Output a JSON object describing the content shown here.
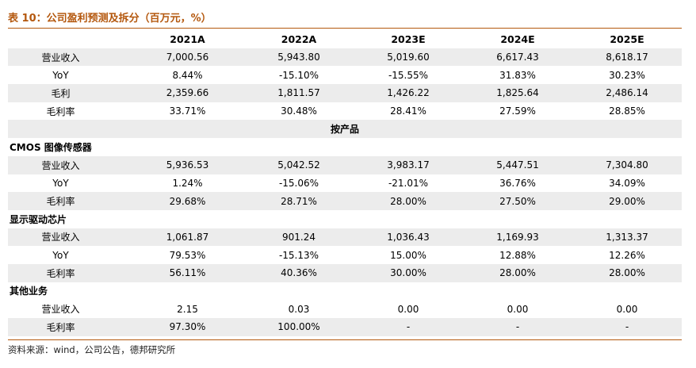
{
  "title": "表 10：公司盈利预测及拆分（百万元，%）",
  "columns": [
    "",
    "2021A",
    "2022A",
    "2023E",
    "2024E",
    "2025E"
  ],
  "total": {
    "rows": [
      {
        "label": "营业收入",
        "values": [
          "7,000.56",
          "5,943.80",
          "5,019.60",
          "6,617.43",
          "8,618.17"
        ]
      },
      {
        "label": "YoY",
        "values": [
          "8.44%",
          "-15.10%",
          "-15.55%",
          "31.83%",
          "30.23%"
        ]
      },
      {
        "label": "毛利",
        "values": [
          "2,359.66",
          "1,811.57",
          "1,426.22",
          "1,825.64",
          "2,486.14"
        ]
      },
      {
        "label": "毛利率",
        "values": [
          "33.71%",
          "30.48%",
          "28.41%",
          "27.59%",
          "28.85%"
        ]
      }
    ]
  },
  "by_product_label": "按产品",
  "segments": [
    {
      "name": "CMOS 图像传感器",
      "rows": [
        {
          "label": "营业收入",
          "values": [
            "5,936.53",
            "5,042.52",
            "3,983.17",
            "5,447.51",
            "7,304.80"
          ]
        },
        {
          "label": "YoY",
          "values": [
            "1.24%",
            "-15.06%",
            "-21.01%",
            "36.76%",
            "34.09%"
          ]
        },
        {
          "label": "毛利率",
          "values": [
            "29.68%",
            "28.71%",
            "28.00%",
            "27.50%",
            "29.00%"
          ]
        }
      ]
    },
    {
      "name": "显示驱动芯片",
      "rows": [
        {
          "label": "营业收入",
          "values": [
            "1,061.87",
            "901.24",
            "1,036.43",
            "1,169.93",
            "1,313.37"
          ]
        },
        {
          "label": "YoY",
          "values": [
            "79.53%",
            "-15.13%",
            "15.00%",
            "12.88%",
            "12.26%"
          ]
        },
        {
          "label": "毛利率",
          "values": [
            "56.11%",
            "40.36%",
            "30.00%",
            "28.00%",
            "28.00%"
          ]
        }
      ]
    },
    {
      "name": "其他业务",
      "rows": [
        {
          "label": "营业收入",
          "values": [
            "2.15",
            "0.03",
            "0.00",
            "0.00",
            "0.00"
          ]
        },
        {
          "label": "毛利率",
          "values": [
            "97.30%",
            "100.00%",
            "-",
            "-",
            "-"
          ]
        }
      ]
    }
  ],
  "source": "资料来源：wind，公司公告，德邦研究所",
  "colors": {
    "accent": "#b4580e",
    "shade": "#ececec"
  }
}
